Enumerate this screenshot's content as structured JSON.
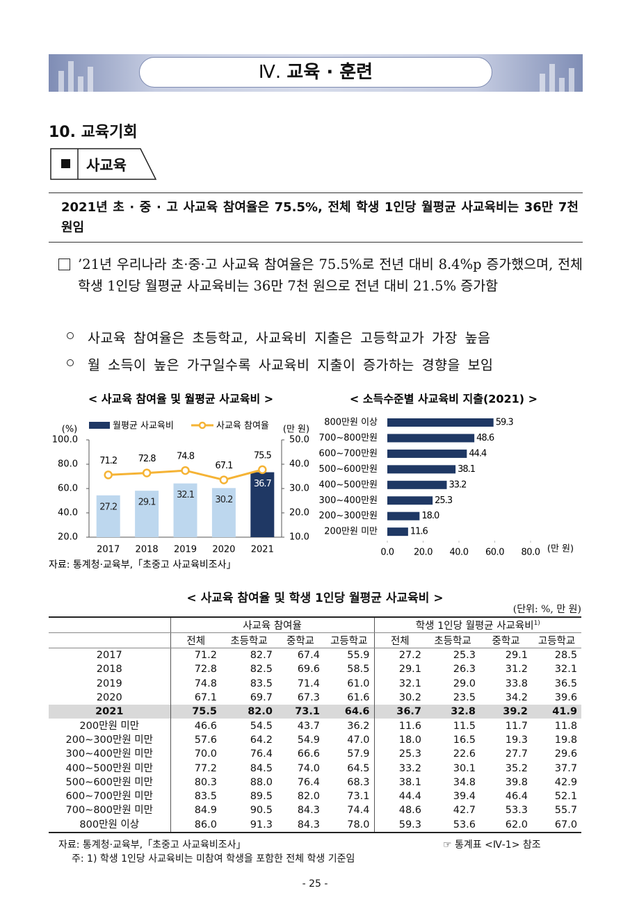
{
  "header": {
    "numeral": "Ⅳ.",
    "title": "교육 · 훈련"
  },
  "section": "10. 교육기회",
  "subsection": "사교육",
  "summary": "2021년 초 · 중 · 고 사교육 참여율은 75.5%, 전체 학생 1인당 월평균 사교육비는 36만 7천 원임",
  "paragraph": "’21년 우리나라 초·중·고 사교육 참여율은 75.5%로 전년 대비 8.4%p 증가했으며, 전체 학생 1인당 월평균 사교육비는 36만 7천 원으로 전년 대비 21.5% 증가함",
  "points": [
    "사교육 참여율은 초등학교, 사교육비 지출은 고등학교가 가장 높음",
    "월 소득이 높은 가구일수록 사교육비 지출이 증가하는 경향을 보임"
  ],
  "chart_data": [
    {
      "type": "combo",
      "title": "< 사교육 참여율 및 월평균 사교육비 >",
      "categories": [
        "2017",
        "2018",
        "2019",
        "2020",
        "2021"
      ],
      "ylabel": "(%)",
      "y2label": "(만 원)",
      "ylim": [
        20,
        100
      ],
      "yticks": [
        {
          "value": 20,
          "label": "20.0"
        },
        {
          "value": 40,
          "label": "40.0"
        },
        {
          "value": 60,
          "label": "60.0"
        },
        {
          "value": 80,
          "label": "80.0"
        },
        {
          "value": 100,
          "label": "100.0"
        }
      ],
      "y2lim": [
        10,
        50
      ],
      "y2ticks": [
        {
          "value": 10,
          "label": "10.0"
        },
        {
          "value": 20,
          "label": "20.0"
        },
        {
          "value": 30,
          "label": "30.0"
        },
        {
          "value": 40,
          "label": "40.0"
        },
        {
          "value": 50,
          "label": "50.0"
        }
      ],
      "series": [
        {
          "name": "월평균 사교육비",
          "type": "bar",
          "axis": "y2",
          "color": "#1f3864",
          "colors": [
            "#bdd7ee",
            "#bdd7ee",
            "#bdd7ee",
            "#bdd7ee",
            "#1f3864"
          ],
          "values": [
            27.2,
            29.1,
            32.1,
            30.2,
            36.7
          ]
        },
        {
          "name": "사교육 참여율",
          "type": "line",
          "color": "#f5b335",
          "values": [
            71.2,
            72.8,
            74.8,
            67.1,
            75.5
          ]
        }
      ]
    },
    {
      "type": "barh",
      "title": "< 소득수준별 사교육비 지출(2021) >",
      "categories": [
        "800만원 이상",
        "700~800만원",
        "600~700만원",
        "500~600만원",
        "400~500만원",
        "300~400만원",
        "200~300만원",
        "200만원 미만"
      ],
      "values": [
        59.3,
        48.6,
        44.4,
        38.1,
        33.2,
        25.3,
        18.0,
        11.6
      ],
      "value_labels": [
        "59.3",
        "48.6",
        "44.4",
        "38.1",
        "33.2",
        "25.3",
        "18.0",
        "11.6"
      ],
      "color": "#1f3864",
      "xlim": [
        0,
        80
      ],
      "xticks": [
        {
          "value": 0,
          "label": "0.0"
        },
        {
          "value": 20,
          "label": "20.0"
        },
        {
          "value": 40,
          "label": "40.0"
        },
        {
          "value": 60,
          "label": "60.0"
        },
        {
          "value": 80,
          "label": "80.0"
        }
      ],
      "xlabel": "(만 원)"
    }
  ],
  "chart_source": "자료: 통계청·교육부,「초중고 사교육비조사」",
  "table": {
    "title": "< 사교육 참여율 및 학생 1인당 월평균 사교육비 >",
    "unit": "(단위: %, 만 원)",
    "groups": [
      "사교육 참여율",
      "학생 1인당 월평균 사교육비"
    ],
    "group_note": "1)",
    "columns": [
      "전체",
      "초등학교",
      "중학교",
      "고등학교",
      "전체",
      "초등학교",
      "중학교",
      "고등학교"
    ],
    "rows": [
      [
        "2017",
        "71.2",
        "82.7",
        "67.4",
        "55.9",
        "27.2",
        "25.3",
        "29.1",
        "28.5"
      ],
      [
        "2018",
        "72.8",
        "82.5",
        "69.6",
        "58.5",
        "29.1",
        "26.3",
        "31.2",
        "32.1"
      ],
      [
        "2019",
        "74.8",
        "83.5",
        "71.4",
        "61.0",
        "32.1",
        "29.0",
        "33.8",
        "36.5"
      ],
      [
        "2020",
        "67.1",
        "69.7",
        "67.3",
        "61.6",
        "30.2",
        "23.5",
        "34.2",
        "39.6"
      ],
      [
        "2021",
        "75.5",
        "82.0",
        "73.1",
        "64.6",
        "36.7",
        "32.8",
        "39.2",
        "41.9"
      ],
      [
        "200만원 미만",
        "46.6",
        "54.5",
        "43.7",
        "36.2",
        "11.6",
        "11.5",
        "11.7",
        "11.8"
      ],
      [
        "200∼300만원 미만",
        "57.6",
        "64.2",
        "54.9",
        "47.0",
        "18.0",
        "16.5",
        "19.3",
        "19.8"
      ],
      [
        "300∼400만원 미만",
        "70.0",
        "76.4",
        "66.6",
        "57.9",
        "25.3",
        "22.6",
        "27.7",
        "29.6"
      ],
      [
        "400∼500만원 미만",
        "77.2",
        "84.5",
        "74.0",
        "64.5",
        "33.2",
        "30.1",
        "35.2",
        "37.7"
      ],
      [
        "500∼600만원 미만",
        "80.3",
        "88.0",
        "76.4",
        "68.3",
        "38.1",
        "34.8",
        "39.8",
        "42.9"
      ],
      [
        "600∼700만원 미만",
        "83.5",
        "89.5",
        "82.0",
        "73.1",
        "44.4",
        "39.4",
        "46.4",
        "52.1"
      ],
      [
        "700∼800만원 미만",
        "84.9",
        "90.5",
        "84.3",
        "74.4",
        "48.6",
        "42.7",
        "53.3",
        "55.7"
      ],
      [
        "800만원 이상",
        "86.0",
        "91.3",
        "84.3",
        "78.0",
        "59.3",
        "53.6",
        "62.0",
        "67.0"
      ]
    ]
  },
  "footer": {
    "source": "자료: 통계청·교육부,「초중고 사교육비조사」",
    "reference": "☞ 통계표 <Ⅳ-1> 참조",
    "note": "주: 1) 학생 1인당 사교육비는 미참여 학생을 포함한 전체 학생 기준임",
    "page": "- 25 -"
  }
}
